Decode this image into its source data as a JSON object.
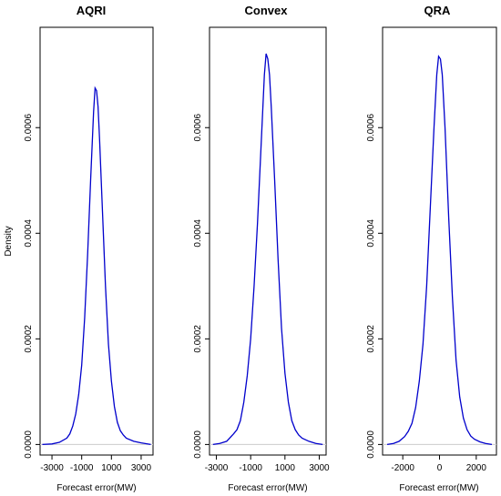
{
  "chart_data": [
    {
      "type": "line",
      "title": "AQRI",
      "xlabel": "Forecast error(MW)",
      "ylabel": "Density",
      "xlim": [
        -3800,
        3800
      ],
      "ylim": [
        -2e-05,
        0.00079
      ],
      "xticks": [
        -3000,
        -1000,
        1000,
        3000
      ],
      "yticks": [
        0.0,
        0.0002,
        0.0004,
        0.0006
      ],
      "ytick_labels": [
        "0.0000",
        "0.0002",
        "0.0004",
        "0.0006"
      ],
      "color": "#0000cc",
      "series": [
        {
          "x": [
            -3650,
            -3000,
            -2500,
            -2000,
            -1800,
            -1600,
            -1400,
            -1200,
            -1000,
            -800,
            -600,
            -400,
            -200,
            -100,
            0,
            100,
            200,
            400,
            600,
            800,
            1000,
            1200,
            1400,
            1600,
            1800,
            2000,
            2500,
            3000,
            3650
          ],
          "y": [
            0.0,
            1e-06,
            4e-06,
            1.2e-05,
            2e-05,
            3.5e-05,
            5.8e-05,
            9.5e-05,
            0.00015,
            0.00024,
            0.00036,
            0.0005,
            0.00063,
            0.000675,
            0.00067,
            0.00064,
            0.00058,
            0.00044,
            0.0003,
            0.00019,
            0.00012,
            7.2e-05,
            4.2e-05,
            2.6e-05,
            1.8e-05,
            1.2e-05,
            6e-06,
            3e-06,
            0.0
          ]
        }
      ]
    },
    {
      "type": "line",
      "title": "Convex",
      "xlabel": "Forecast error(MW)",
      "ylabel": "",
      "xlim": [
        -3400,
        3400
      ],
      "ylim": [
        -2e-05,
        0.00079
      ],
      "xticks": [
        -3000,
        -1000,
        1000,
        3000
      ],
      "yticks": [
        0.0,
        0.0002,
        0.0004,
        0.0006
      ],
      "ytick_labels": [
        "0.0000",
        "0.0002",
        "0.0004",
        "0.0006"
      ],
      "color": "#0000cc",
      "series": [
        {
          "x": [
            -3200,
            -2800,
            -2400,
            -2000,
            -1800,
            -1600,
            -1400,
            -1200,
            -1000,
            -800,
            -600,
            -400,
            -200,
            -100,
            0,
            100,
            200,
            400,
            600,
            800,
            1000,
            1200,
            1400,
            1600,
            1800,
            2000,
            2400,
            2800,
            3200
          ],
          "y": [
            0.0,
            2e-06,
            6e-06,
            2e-05,
            2.8e-05,
            4.5e-05,
            8e-05,
            0.00013,
            0.0002,
            0.0003,
            0.00042,
            0.00056,
            0.0007,
            0.00074,
            0.00073,
            0.0007,
            0.00064,
            0.0005,
            0.00035,
            0.00022,
            0.000135,
            8e-05,
            4.5e-05,
            2.8e-05,
            1.8e-05,
            1.2e-05,
            6e-06,
            2e-06,
            0.0
          ]
        }
      ]
    },
    {
      "type": "line",
      "title": "QRA",
      "xlabel": "Forecast error(MW)",
      "ylabel": "",
      "xlim": [
        -3100,
        3100
      ],
      "ylim": [
        -2e-05,
        0.00079
      ],
      "xticks": [
        -2000,
        0,
        2000
      ],
      "yticks": [
        0.0,
        0.0002,
        0.0004,
        0.0006
      ],
      "ytick_labels": [
        "0.0000",
        "0.0002",
        "0.0004",
        "0.0006"
      ],
      "color": "#0000cc",
      "series": [
        {
          "x": [
            -2850,
            -2500,
            -2200,
            -1900,
            -1700,
            -1500,
            -1300,
            -1100,
            -900,
            -700,
            -500,
            -300,
            -150,
            -50,
            50,
            150,
            300,
            500,
            700,
            900,
            1100,
            1300,
            1500,
            1700,
            1900,
            2200,
            2500,
            2850
          ],
          "y": [
            0.0,
            2e-06,
            6e-06,
            1.5e-05,
            2.5e-05,
            4e-05,
            7e-05,
            0.00012,
            0.00019,
            0.0003,
            0.00045,
            0.0006,
            0.0007,
            0.000735,
            0.00073,
            0.0007,
            0.0006,
            0.00043,
            0.00028,
            0.00016,
            9e-05,
            5e-05,
            2.8e-05,
            1.6e-05,
            1e-05,
            5e-06,
            2e-06,
            0.0
          ]
        }
      ]
    }
  ]
}
